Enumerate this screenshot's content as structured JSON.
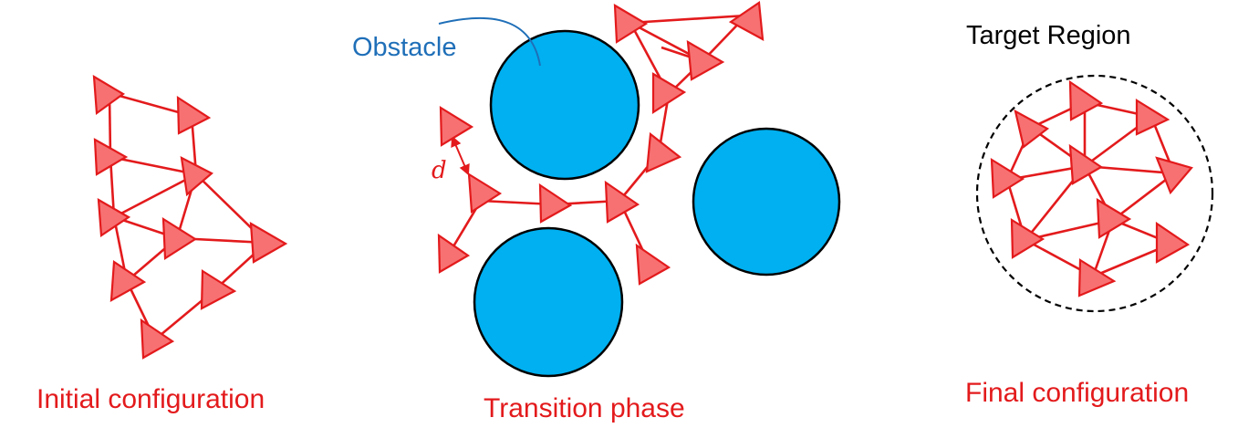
{
  "captions": {
    "initial": "Initial configuration",
    "transition": "Transition phase",
    "final": "Final configuration",
    "target_region": "Target Region",
    "obstacle": "Obstacle",
    "distance_symbol": "d"
  },
  "colors": {
    "agent_fill": "#f77172",
    "agent_stroke": "#e31a1c",
    "link": "#e31a1c",
    "obstacle_fill": "#00b0f0",
    "obstacle_label": "#1f6fb8",
    "caption": "#e31a1c",
    "target_label": "#000000"
  }
}
